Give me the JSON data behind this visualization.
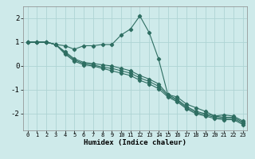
{
  "xlabel": "Humidex (Indice chaleur)",
  "bg_color": "#ceeaea",
  "line_color": "#2e6e62",
  "grid_color": "#aed4d4",
  "xlim": [
    -0.5,
    23.5
  ],
  "ylim": [
    -2.7,
    2.5
  ],
  "xticks": [
    0,
    1,
    2,
    3,
    4,
    5,
    6,
    7,
    8,
    9,
    10,
    11,
    12,
    13,
    14,
    15,
    16,
    17,
    18,
    19,
    20,
    21,
    22,
    23
  ],
  "yticks": [
    -2,
    -1,
    0,
    1,
    2
  ],
  "lines": [
    {
      "x": [
        0,
        1,
        2,
        3,
        4,
        5,
        6,
        7,
        8,
        9,
        10,
        11,
        12,
        13,
        14,
        15,
        16,
        17,
        18,
        19,
        20,
        21,
        22,
        23
      ],
      "y": [
        1.0,
        1.0,
        1.0,
        0.9,
        0.85,
        0.7,
        0.85,
        0.85,
        0.9,
        0.9,
        1.3,
        1.55,
        2.1,
        1.4,
        0.3,
        -1.2,
        -1.3,
        -1.6,
        -1.75,
        -1.9,
        -2.1,
        -2.05,
        -2.1,
        -2.3
      ]
    },
    {
      "x": [
        0,
        1,
        2,
        3,
        4,
        5,
        6,
        7,
        8,
        9,
        10,
        11,
        12,
        13,
        14,
        15,
        16,
        17,
        18,
        19,
        20,
        21,
        22,
        23
      ],
      "y": [
        1.0,
        1.0,
        1.0,
        0.9,
        0.6,
        0.3,
        0.15,
        0.1,
        0.05,
        0.0,
        -0.1,
        -0.2,
        -0.4,
        -0.55,
        -0.75,
        -1.2,
        -1.4,
        -1.7,
        -1.9,
        -2.0,
        -2.1,
        -2.15,
        -2.15,
        -2.35
      ]
    },
    {
      "x": [
        0,
        1,
        2,
        3,
        4,
        5,
        6,
        7,
        8,
        9,
        10,
        11,
        12,
        13,
        14,
        15,
        16,
        17,
        18,
        19,
        20,
        21,
        22,
        23
      ],
      "y": [
        1.0,
        1.0,
        1.0,
        0.9,
        0.55,
        0.25,
        0.1,
        0.05,
        -0.05,
        -0.1,
        -0.2,
        -0.3,
        -0.5,
        -0.65,
        -0.85,
        -1.25,
        -1.45,
        -1.75,
        -1.95,
        -2.05,
        -2.15,
        -2.2,
        -2.2,
        -2.4
      ]
    },
    {
      "x": [
        0,
        1,
        2,
        3,
        4,
        5,
        6,
        7,
        8,
        9,
        10,
        11,
        12,
        13,
        14,
        15,
        16,
        17,
        18,
        19,
        20,
        21,
        22,
        23
      ],
      "y": [
        1.0,
        1.0,
        1.0,
        0.9,
        0.5,
        0.2,
        0.05,
        0.0,
        -0.1,
        -0.2,
        -0.3,
        -0.4,
        -0.6,
        -0.75,
        -0.95,
        -1.3,
        -1.5,
        -1.8,
        -2.0,
        -2.1,
        -2.2,
        -2.25,
        -2.25,
        -2.45
      ]
    }
  ]
}
